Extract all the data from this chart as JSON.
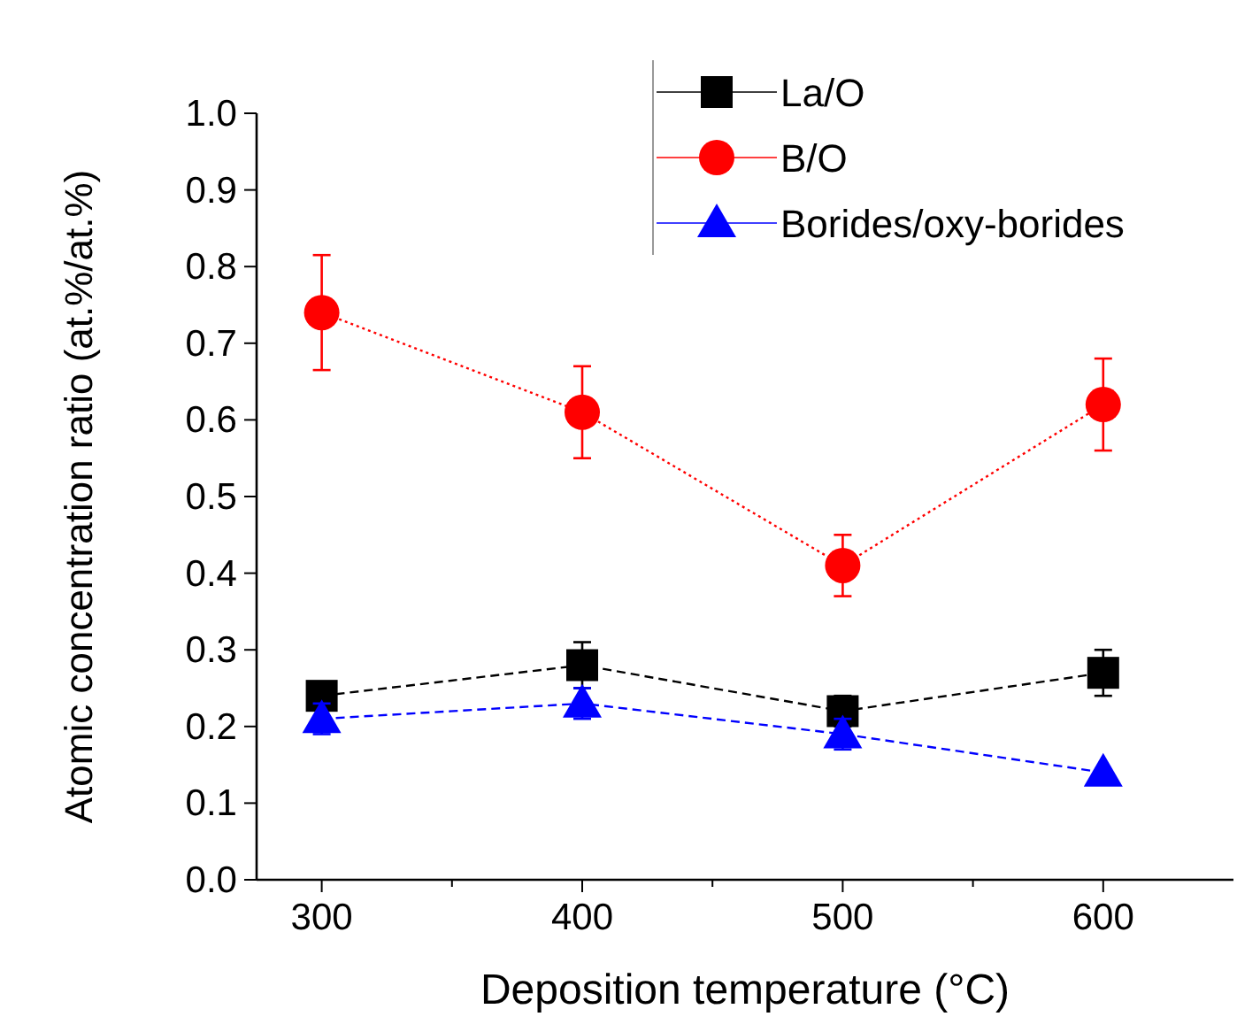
{
  "chart_data": {
    "type": "line",
    "xlabel": "Deposition temperature (°C)",
    "ylabel": "Atomic concentration ratio (at.%/at.%)",
    "x": [
      300,
      400,
      500,
      600
    ],
    "xlim": [
      275,
      650
    ],
    "xticks": [
      300,
      {
        "value": 350,
        "label": null
      },
      400,
      {
        "value": 450,
        "label": null
      },
      500,
      {
        "value": 550,
        "label": null
      },
      600
    ],
    "ylim": [
      0,
      1
    ],
    "yticks": [
      {
        "value": 0,
        "label": "0.0"
      },
      0.1,
      0.2,
      0.3,
      0.4,
      0.5,
      0.6,
      0.7,
      0.8,
      0.9,
      {
        "value": 1,
        "label": "1.0"
      }
    ],
    "grid": false,
    "legend": "top right",
    "series": [
      {
        "name": "La/O",
        "color": "#000000",
        "marker": "square",
        "line_style": "dashed",
        "values": [
          0.24,
          0.28,
          0.22,
          0.27
        ],
        "errors": [
          0.01,
          0.03,
          0.02,
          0.03
        ]
      },
      {
        "name": "B/O",
        "color": "#ff0000",
        "marker": "circle",
        "line_style": "dotted",
        "values": [
          0.74,
          0.61,
          0.41,
          0.62
        ],
        "errors": [
          0.075,
          0.06,
          0.04,
          0.06
        ]
      },
      {
        "name": "Borides/oxy-borides",
        "color": "#0000ff",
        "marker": "triangle",
        "line_style": "dashed",
        "values": [
          0.21,
          0.23,
          0.19,
          0.14
        ],
        "errors": [
          0.02,
          0.02,
          0.02,
          null
        ]
      }
    ]
  }
}
